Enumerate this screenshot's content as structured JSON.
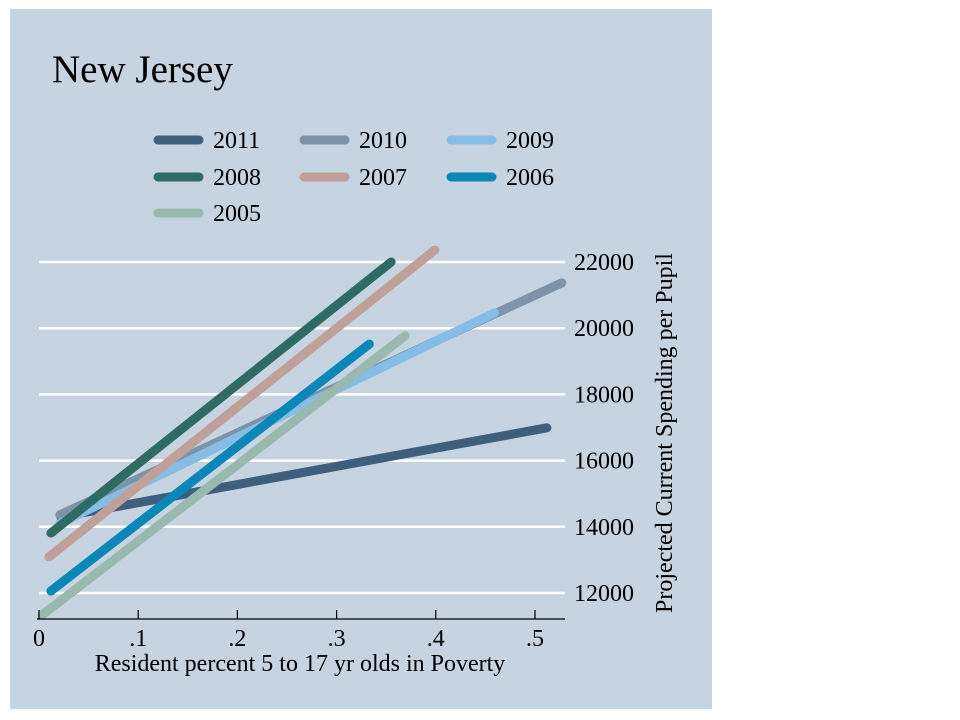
{
  "chart_data": {
    "type": "line",
    "title": "New Jersey",
    "xlabel": "Resident percent 5 to 17 yr olds in Poverty",
    "ylabel": "Projected Current Spending per Pupil",
    "xlim": [
      0,
      0.53
    ],
    "ylim": [
      11300,
      22600
    ],
    "x_ticks": [
      0,
      0.1,
      0.2,
      0.3,
      0.4,
      0.5
    ],
    "x_tick_labels": [
      "0",
      ".1",
      ".2",
      ".3",
      ".4",
      ".5"
    ],
    "y_ticks": [
      12000,
      14000,
      16000,
      18000,
      20000,
      22000
    ],
    "y_tick_labels": [
      "12000",
      "14000",
      "16000",
      "18000",
      "20000",
      "22000"
    ],
    "y_axis_side": "right",
    "grid": true,
    "legend_position": "top",
    "background_color": "#c6d3e0",
    "series": [
      {
        "name": "2011",
        "color": "#3d5f7d",
        "x": [
          0.022,
          0.512
        ],
        "y": [
          14300,
          16990
        ]
      },
      {
        "name": "2010",
        "color": "#7f93a8",
        "x": [
          0.021,
          0.527
        ],
        "y": [
          14360,
          21370
        ]
      },
      {
        "name": "2009",
        "color": "#86bde6",
        "x": [
          0.021,
          0.459
        ],
        "y": [
          14100,
          20460
        ]
      },
      {
        "name": "2008",
        "color": "#2e6b64",
        "x": [
          0.012,
          0.355
        ],
        "y": [
          13810,
          22000
        ]
      },
      {
        "name": "2007",
        "color": "#c1a09a",
        "x": [
          0.01,
          0.399
        ],
        "y": [
          13090,
          22360
        ]
      },
      {
        "name": "2006",
        "color": "#0a86b8",
        "x": [
          0.012,
          0.333
        ],
        "y": [
          12060,
          19520
        ]
      },
      {
        "name": "2005",
        "color": "#99b8ae",
        "x": [
          0.003,
          0.369
        ],
        "y": [
          11330,
          19770
        ]
      }
    ]
  }
}
